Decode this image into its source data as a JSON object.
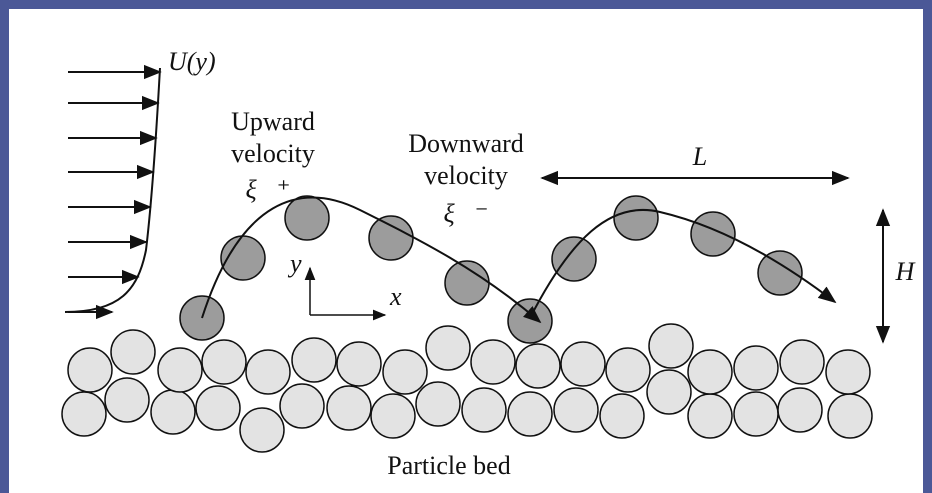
{
  "profile_label": "U(y)",
  "upward": {
    "line1": "Upward",
    "line2": "velocity",
    "symbol": "ξ⃗⁺"
  },
  "downward": {
    "line1": "Downward",
    "line2": "velocity",
    "symbol": "ξ⃗⁻"
  },
  "length_label": "L",
  "height_label": "H",
  "axes": {
    "y": "y",
    "x": "x"
  },
  "bed_label": "Particle bed"
}
